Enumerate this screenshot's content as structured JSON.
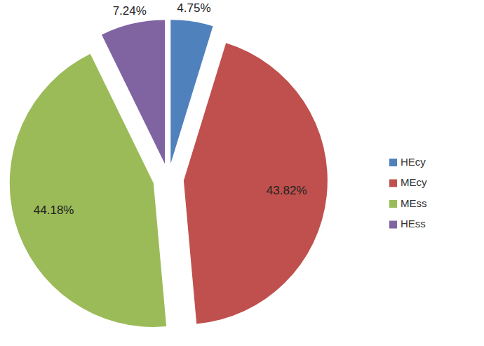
{
  "chart_data": {
    "type": "pie",
    "categories": [
      "HEcy",
      "MEcy",
      "MEss",
      "HEss"
    ],
    "values": [
      4.75,
      43.82,
      44.18,
      7.24
    ],
    "value_labels": [
      "4.75%",
      "43.82%",
      "44.18%",
      "7.24%"
    ],
    "colors": [
      "#4f81bd",
      "#c0504d",
      "#9bbb59",
      "#8064a2"
    ],
    "data_labels": true,
    "legend": "right"
  }
}
